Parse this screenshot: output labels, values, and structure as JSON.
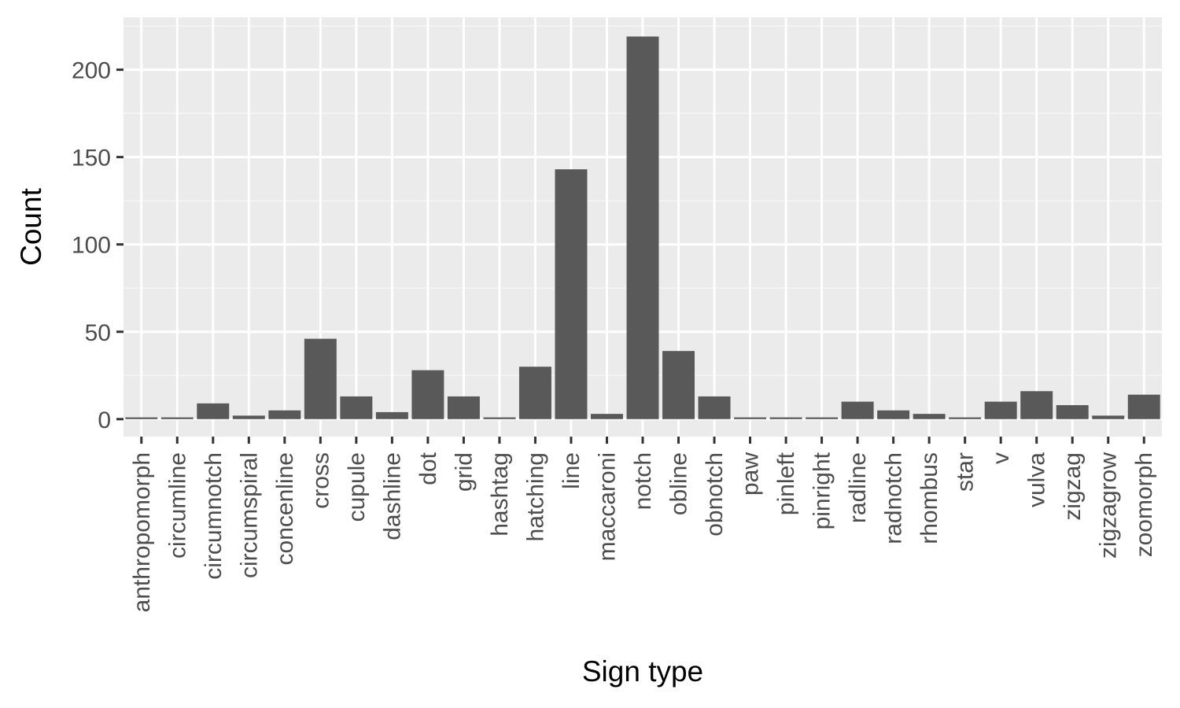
{
  "chart_data": {
    "type": "bar",
    "xlabel": "Sign type",
    "ylabel": "Count",
    "categories": [
      "anthropomorph",
      "circumline",
      "circumnotch",
      "circumspiral",
      "concenline",
      "cross",
      "cupule",
      "dashline",
      "dot",
      "grid",
      "hashtag",
      "hatching",
      "line",
      "maccaroni",
      "notch",
      "obline",
      "obnotch",
      "paw",
      "pinleft",
      "pinright",
      "radline",
      "radnotch",
      "rhombus",
      "star",
      "v",
      "vulva",
      "zigzag",
      "zigzagrow",
      "zoomorph"
    ],
    "values": [
      1,
      1,
      9,
      2,
      5,
      46,
      13,
      4,
      28,
      13,
      1,
      30,
      143,
      3,
      219,
      39,
      13,
      1,
      1,
      1,
      10,
      5,
      3,
      1,
      10,
      16,
      8,
      2,
      14
    ],
    "ylim": [
      -10,
      230
    ],
    "yticks": [
      0,
      50,
      100,
      150,
      200
    ],
    "grid": true,
    "legend": "none",
    "colors": {
      "bar": "#595959",
      "panel_background": "#ebebeb",
      "grid_major": "#ffffff",
      "grid_minor": "#f5f5f5",
      "tick_text": "#4d4d4d",
      "axis_title": "#000000",
      "tick_mark": "#333333"
    }
  }
}
